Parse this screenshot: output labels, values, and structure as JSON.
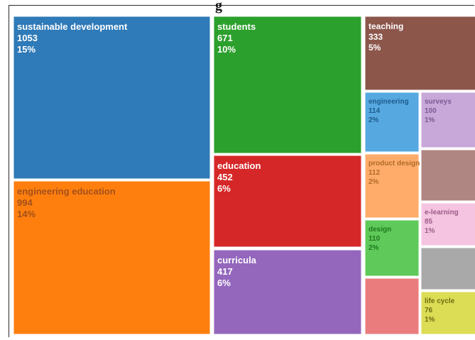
{
  "title_fragment": "g",
  "chart_data": {
    "type": "treemap",
    "tiles": [
      {
        "name": "sustainable development",
        "value": 1053,
        "percent": "15%",
        "color": "#2f7ab8",
        "label_color": "#ffffff"
      },
      {
        "name": "engineering education",
        "value": 994,
        "percent": "14%",
        "color": "#ff7f0e",
        "label_color": "#a3501b"
      },
      {
        "name": "students",
        "value": 671,
        "percent": "10%",
        "color": "#2ca02c",
        "label_color": "#ffffff"
      },
      {
        "name": "education",
        "value": 452,
        "percent": "6%",
        "color": "#d62728",
        "label_color": "#ffffff"
      },
      {
        "name": "curricula",
        "value": 417,
        "percent": "6%",
        "color": "#9467bd",
        "label_color": "#ffffff"
      },
      {
        "name": "teaching",
        "value": 333,
        "percent": "5%",
        "color": "#8c564b",
        "label_color": "#ffffff"
      },
      {
        "name": "engineering",
        "value": 114,
        "percent": "2%",
        "color": "#56a8e0",
        "label_color": "#1d5b8a"
      },
      {
        "name": "surveys",
        "value": 100,
        "percent": "1%",
        "color": "#c7a8d8",
        "label_color": "#7b5a95"
      },
      {
        "name": "product design",
        "value": 112,
        "percent": "2%",
        "color": "#ffac6b",
        "label_color": "#b06a28"
      },
      {
        "name": "",
        "value": null,
        "percent": "",
        "color": "#b08682",
        "label_color": "#6c4743"
      },
      {
        "name": "design",
        "value": 110,
        "percent": "2%",
        "color": "#5fc95a",
        "label_color": "#1e7a1c"
      },
      {
        "name": "e-learning",
        "value": 85,
        "percent": "1%",
        "color": "#f4c4e0",
        "label_color": "#9c5c87"
      },
      {
        "name": "",
        "value": null,
        "percent": "",
        "color": "#a9a9a9",
        "label_color": "#6a6a6a"
      },
      {
        "name": "",
        "value": null,
        "percent": "",
        "color": "#ea7c7e",
        "label_color": "#9b3a3c"
      },
      {
        "name": "life cycle",
        "value": 76,
        "percent": "1%",
        "color": "#dcdc55",
        "label_color": "#6d6d12"
      }
    ]
  }
}
